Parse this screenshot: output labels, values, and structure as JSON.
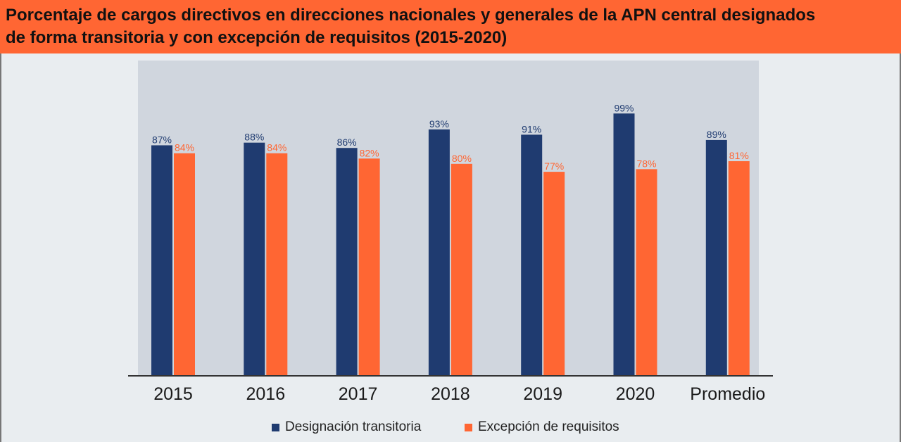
{
  "title": {
    "line1": "Porcentaje de cargos directivos en direcciones nacionales y generales de la APN central designados",
    "line2": "de forma transitoria y con excepción de requisitos (2015-2020)"
  },
  "colors": {
    "title_bg": "#ff6633",
    "page_bg": "#e9edf0",
    "plot_bg": "#d0d6de",
    "series_navy": "#1f3b70",
    "series_orange": "#ff6633"
  },
  "chart_data": {
    "type": "bar",
    "title": "Porcentaje de cargos directivos en direcciones nacionales y generales de la APN central designados de forma transitoria y con excepción de requisitos (2015-2020)",
    "categories": [
      "2015",
      "2016",
      "2017",
      "2018",
      "2019",
      "2020",
      "Promedio"
    ],
    "series": [
      {
        "name": "Designación transitoria",
        "values": [
          87,
          88,
          86,
          93,
          91,
          99,
          89
        ],
        "labels": [
          "87%",
          "88%",
          "86%",
          "93%",
          "91%",
          "99%",
          "89%"
        ],
        "color": "#1f3b70"
      },
      {
        "name": "Excepción de requisitos",
        "values": [
          84,
          84,
          82,
          80,
          77,
          78,
          81
        ],
        "labels": [
          "84%",
          "84%",
          "82%",
          "80%",
          "77%",
          "78%",
          "81%"
        ],
        "color": "#ff6633"
      }
    ],
    "ylim": [
      0,
      100
    ],
    "grid": false,
    "legend": "bottom"
  }
}
